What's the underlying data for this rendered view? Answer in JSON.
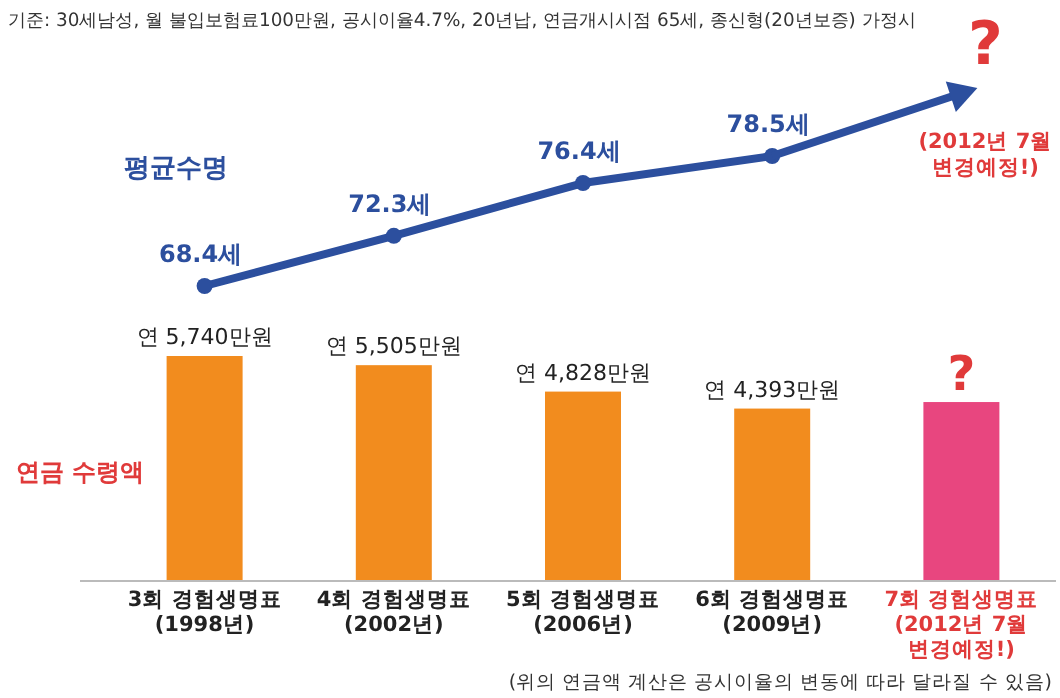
{
  "chart_data": [
    {
      "type": "line",
      "categories": [
        null,
        null,
        null,
        null,
        null
      ],
      "series": [
        {
          "name": "평균수명",
          "color": "#2c4f9e",
          "values": [
            68.4,
            72.3,
            76.4,
            78.5,
            null
          ],
          "value_labels": [
            "68.4세",
            "72.3세",
            "76.4세",
            "78.5세",
            "?"
          ]
        }
      ],
      "marker": "circle",
      "annotations": [
        "기준: 30세남성, 월 불입보험료100만원, 공시이율4.7%, 20년납, 연금개시시점 65세, 종신형(20년보증) 가정시",
        "(2012년 7월 변경예정!)"
      ]
    },
    {
      "type": "bar",
      "categories": [
        "3회 경험생명표 (1998년)",
        "4회 경험생명표 (2002년)",
        "5회 경험생명표 (2006년)",
        "6회 경험생명표 (2009년)",
        "7회 경험생명표 (2012년 7월 변경예정!)"
      ],
      "series": [
        {
          "name": "연금 수령액",
          "colors": [
            "#f28c1e",
            "#f28c1e",
            "#f28c1e",
            "#f28c1e",
            "#e8467f"
          ],
          "values": [
            5740,
            5505,
            4828,
            4393,
            4560
          ],
          "value_labels": [
            "연 5,740만원",
            "연 5,505만원",
            "연 4,828만원",
            "연 4,393만원",
            "?"
          ]
        }
      ],
      "annotations": [
        "(위의 연금액 계산은 공시이율의 변동에 따라 달라질 수 있음)"
      ]
    }
  ]
}
